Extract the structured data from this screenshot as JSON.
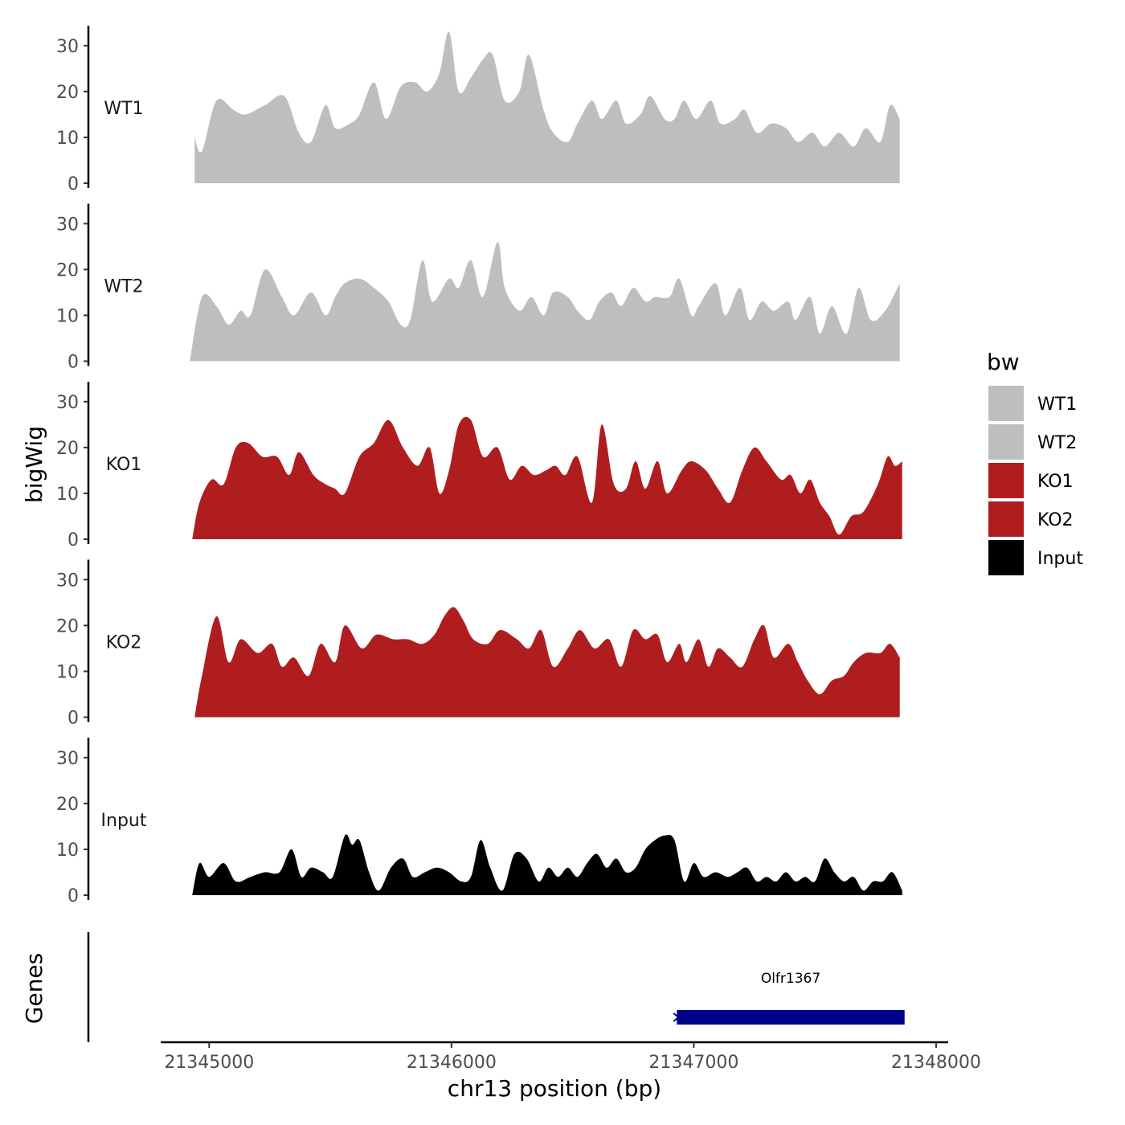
{
  "chart_data": {
    "type": "area",
    "x_range": [
      21344800,
      21348050
    ],
    "xticks": [
      21345000,
      21346000,
      21347000,
      21348000
    ],
    "xlabel": "chr13 position (bp)",
    "ylabel": "bigWig",
    "ylabel_genes": "Genes",
    "ylim": [
      0,
      34
    ],
    "yticks": [
      0,
      10,
      20,
      30
    ],
    "legend": {
      "title": "bw",
      "position": "right"
    },
    "tracks": [
      {
        "name": "WT1",
        "color": "#bebebe",
        "x": [
          21344940,
          21344970,
          21345030,
          21345100,
          21345150,
          21345230,
          21345310,
          21345370,
          21345420,
          21345480,
          21345520,
          21345580,
          21345620,
          21345680,
          21345730,
          21345790,
          21345850,
          21345900,
          21345950,
          21345990,
          21346030,
          21346080,
          21346130,
          21346170,
          21346220,
          21346280,
          21346320,
          21346380,
          21346420,
          21346480,
          21346520,
          21346580,
          21346620,
          21346680,
          21346720,
          21346780,
          21346820,
          21346880,
          21346920,
          21346960,
          21347010,
          21347070,
          21347110,
          21347170,
          21347210,
          21347260,
          21347320,
          21347380,
          21347430,
          21347490,
          21347540,
          21347600,
          21347660,
          21347710,
          21347770,
          21347810,
          21347850
        ],
        "values": [
          10,
          7,
          18,
          16,
          15,
          17,
          19,
          11,
          9,
          17,
          12,
          13,
          15,
          22,
          14,
          21,
          22,
          20,
          24,
          33,
          20,
          23,
          27,
          28,
          18,
          20,
          28,
          16,
          11,
          9,
          13,
          18,
          14,
          18,
          13,
          15,
          19,
          14,
          14,
          18,
          14,
          18,
          13,
          14,
          16,
          11,
          13,
          12,
          9,
          11,
          8,
          11,
          8,
          12,
          9,
          17,
          14
        ]
      },
      {
        "name": "WT2",
        "color": "#bebebe",
        "x": [
          21344920,
          21344970,
          21345030,
          21345080,
          21345130,
          21345170,
          21345230,
          21345300,
          21345350,
          21345420,
          21345480,
          21345520,
          21345560,
          21345620,
          21345680,
          21345740,
          21345790,
          21345830,
          21345880,
          21345920,
          21345990,
          21346030,
          21346080,
          21346130,
          21346190,
          21346220,
          21346280,
          21346330,
          21346380,
          21346420,
          21346480,
          21346520,
          21346570,
          21346610,
          21346660,
          21346700,
          21346750,
          21346800,
          21346840,
          21346900,
          21346940,
          21346990,
          21347020,
          21347090,
          21347130,
          21347190,
          21347230,
          21347280,
          21347330,
          21347390,
          21347420,
          21347480,
          21347520,
          21347570,
          21347630,
          21347680,
          21347730,
          21347790,
          21347850
        ],
        "values": [
          0,
          14,
          12,
          8,
          11,
          10,
          20,
          14,
          10,
          15,
          10,
          14,
          17,
          18,
          16,
          13,
          8,
          9,
          22,
          13,
          18,
          16,
          22,
          14,
          26,
          16,
          11,
          14,
          10,
          15,
          14,
          11,
          9,
          13,
          15,
          12,
          16,
          13,
          14,
          14,
          18,
          10,
          12,
          17,
          10,
          16,
          9,
          13,
          11,
          13,
          9,
          14,
          6,
          12,
          6,
          16,
          9,
          11,
          17
        ]
      },
      {
        "name": "KO1",
        "color": "#b01d1f",
        "x": [
          21344930,
          21344960,
          21345010,
          21345060,
          21345110,
          21345160,
          21345220,
          21345280,
          21345330,
          21345370,
          21345430,
          21345480,
          21345520,
          21345560,
          21345620,
          21345680,
          21345740,
          21345800,
          21345860,
          21345910,
          21345950,
          21345990,
          21346030,
          21346080,
          21346130,
          21346190,
          21346240,
          21346290,
          21346340,
          21346390,
          21346430,
          21346470,
          21346520,
          21346580,
          21346620,
          21346670,
          21346720,
          21346760,
          21346800,
          21346850,
          21346890,
          21346950,
          21346990,
          21347050,
          21347100,
          21347150,
          21347200,
          21347250,
          21347300,
          21347360,
          21347400,
          21347440,
          21347480,
          21347520,
          21347560,
          21347600,
          21347650,
          21347700,
          21347760,
          21347800,
          21347830,
          21347860
        ],
        "values": [
          0,
          8,
          13,
          12,
          20,
          21,
          18,
          18,
          14,
          19,
          14,
          12,
          11,
          10,
          18,
          21,
          26,
          20,
          16,
          20,
          10,
          15,
          25,
          26,
          18,
          20,
          13,
          16,
          14,
          15,
          16,
          14,
          18,
          8,
          25,
          12,
          11,
          17,
          11,
          17,
          10,
          15,
          17,
          15,
          11,
          8,
          15,
          20,
          17,
          13,
          14,
          10,
          13,
          8,
          5,
          1,
          5,
          6,
          12,
          18,
          16,
          17
        ]
      },
      {
        "name": "KO2",
        "color": "#b01d1f",
        "x": [
          21344940,
          21344970,
          21345030,
          21345080,
          21345130,
          21345200,
          21345260,
          21345300,
          21345350,
          21345410,
          21345460,
          21345520,
          21345560,
          21345630,
          21345690,
          21345760,
          21345820,
          21345880,
          21345930,
          21345970,
          21346010,
          21346050,
          21346090,
          21346150,
          21346200,
          21346270,
          21346320,
          21346370,
          21346420,
          21346480,
          21346530,
          21346590,
          21346650,
          21346700,
          21346750,
          21346800,
          21346850,
          21346890,
          21346940,
          21346970,
          21347020,
          21347060,
          21347100,
          21347150,
          21347200,
          21347250,
          21347290,
          21347330,
          21347390,
          21347430,
          21347470,
          21347520,
          21347570,
          21347620,
          21347660,
          21347710,
          21347770,
          21347810,
          21347850
        ],
        "values": [
          0,
          9,
          22,
          12,
          17,
          14,
          16,
          11,
          13,
          9,
          16,
          12,
          20,
          15,
          18,
          17,
          17,
          16,
          18,
          22,
          24,
          21,
          17,
          16,
          19,
          17,
          15,
          19,
          11,
          15,
          19,
          15,
          17,
          11,
          19,
          17,
          18,
          12,
          16,
          12,
          17,
          11,
          15,
          13,
          11,
          17,
          20,
          13,
          16,
          12,
          8,
          5,
          8,
          9,
          12,
          14,
          14,
          16,
          13
        ]
      },
      {
        "name": "Input",
        "color": "#000000",
        "x": [
          21344930,
          21344960,
          21345000,
          21345060,
          21345110,
          21345170,
          21345230,
          21345290,
          21345340,
          21345380,
          21345420,
          21345470,
          21345510,
          21345560,
          21345590,
          21345620,
          21345660,
          21345700,
          21345750,
          21345800,
          21345840,
          21345890,
          21345940,
          21345990,
          21346040,
          21346080,
          21346120,
          21346160,
          21346210,
          21346260,
          21346310,
          21346360,
          21346400,
          21346440,
          21346480,
          21346520,
          21346560,
          21346600,
          21346640,
          21346680,
          21346720,
          21346760,
          21346800,
          21346840,
          21346880,
          21346920,
          21346960,
          21347000,
          21347040,
          21347090,
          21347140,
          21347180,
          21347220,
          21347260,
          21347300,
          21347340,
          21347380,
          21347420,
          21347460,
          21347500,
          21347540,
          21347580,
          21347620,
          21347660,
          21347700,
          21347740,
          21347780,
          21347820,
          21347860
        ],
        "values": [
          0,
          7,
          4,
          7,
          3,
          4,
          5,
          5,
          10,
          4,
          6,
          5,
          4,
          13,
          11,
          12,
          5,
          1,
          6,
          8,
          4,
          5,
          6,
          5,
          3,
          4,
          12,
          6,
          1,
          9,
          8,
          3,
          6,
          4,
          6,
          4,
          7,
          9,
          6,
          8,
          5,
          6,
          10,
          12,
          13,
          12,
          3,
          7,
          4,
          5,
          4,
          5,
          6,
          3,
          4,
          3,
          5,
          3,
          4,
          3,
          8,
          5,
          3,
          4,
          1,
          3,
          3,
          5,
          1
        ]
      }
    ],
    "genes": [
      {
        "name": "Olfr1367",
        "start": 21346930,
        "end": 21347870,
        "strand": "-",
        "color": "#00008b"
      }
    ]
  }
}
